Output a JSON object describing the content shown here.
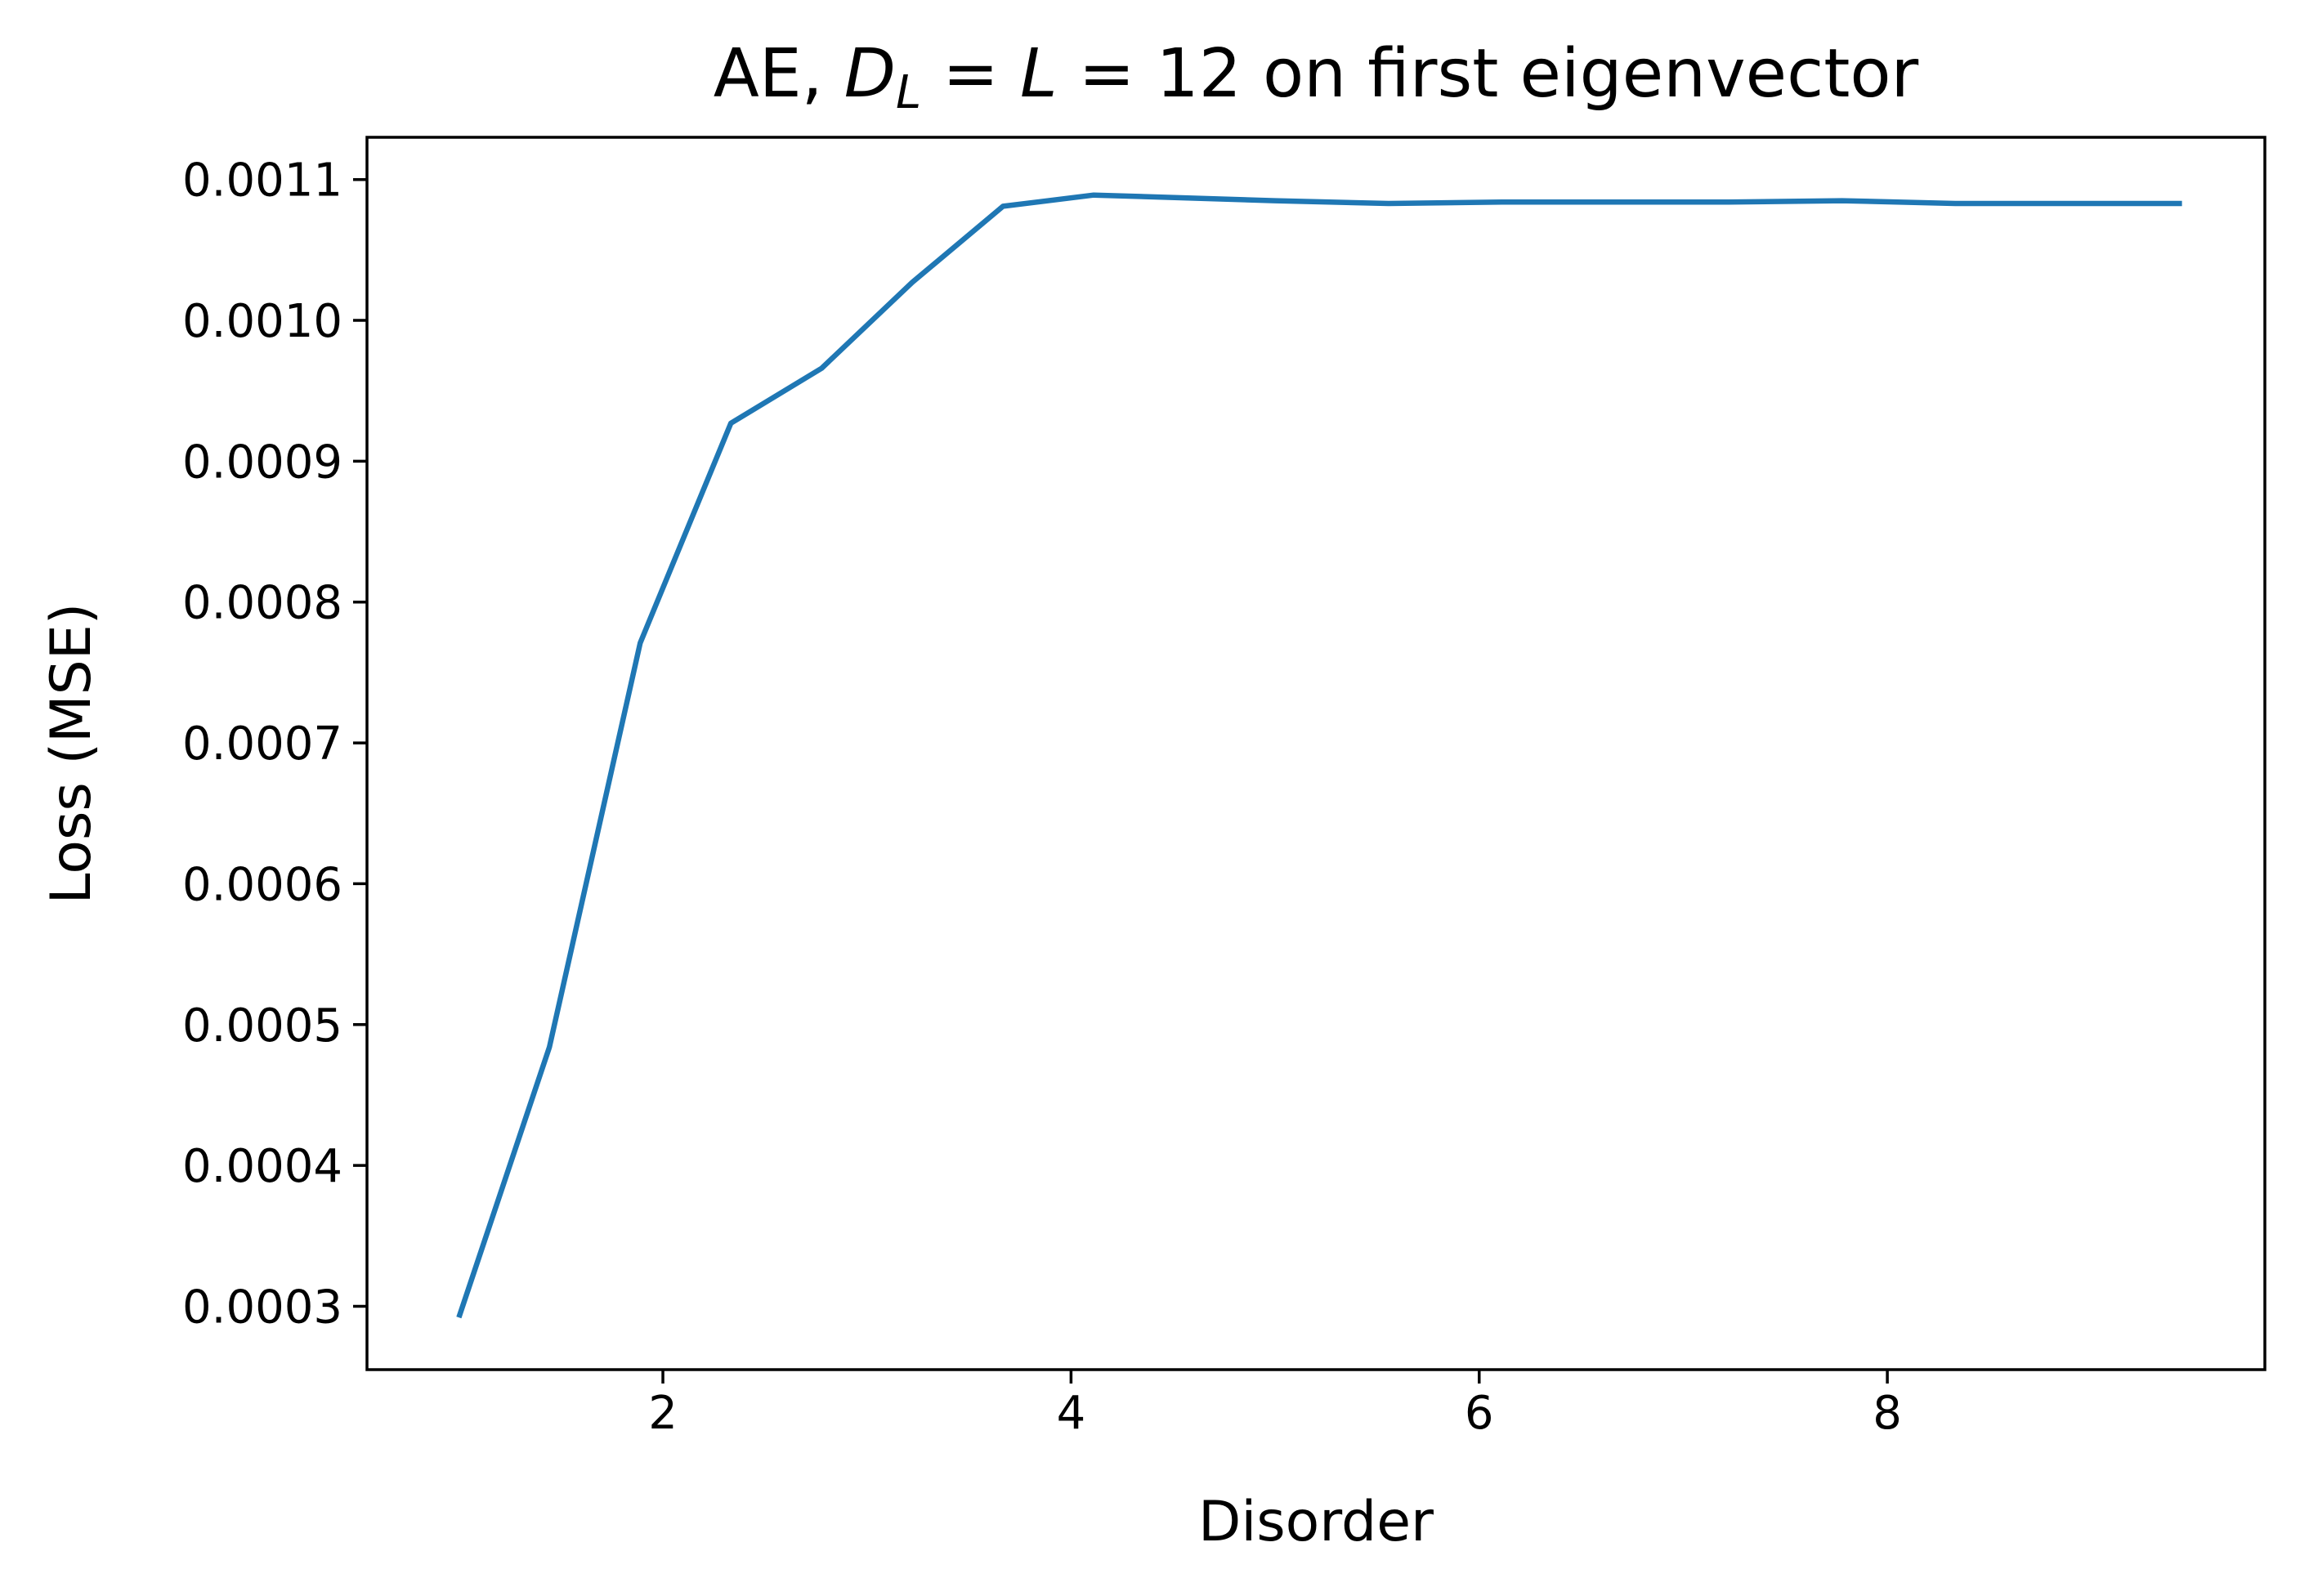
{
  "chart_data": {
    "type": "line",
    "title": {
      "prefix": "AE, ",
      "d_symbol": "D",
      "d_subscript": "L",
      "eq1": " = ",
      "l_symbol": "L",
      "eq2": " = 12",
      "suffix": " on first eigenvector"
    },
    "xlabel": "Disorder",
    "ylabel": "Loss (MSE)",
    "xlim": [
      0.55,
      9.85
    ],
    "ylim": [
      0.000255,
      0.00113
    ],
    "xticks": [
      {
        "value": 2,
        "label": "2"
      },
      {
        "value": 4,
        "label": "4"
      },
      {
        "value": 6,
        "label": "6"
      },
      {
        "value": 8,
        "label": "8"
      }
    ],
    "yticks": [
      {
        "value": 0.0003,
        "label": "0.0003"
      },
      {
        "value": 0.0004,
        "label": "0.0004"
      },
      {
        "value": 0.0005,
        "label": "0.0005"
      },
      {
        "value": 0.0006,
        "label": "0.0006"
      },
      {
        "value": 0.0007,
        "label": "0.0007"
      },
      {
        "value": 0.0008,
        "label": "0.0008"
      },
      {
        "value": 0.0009,
        "label": "0.0009"
      },
      {
        "value": 0.001,
        "label": "0.0010"
      },
      {
        "value": 0.0011,
        "label": "0.0011"
      }
    ],
    "grid": false,
    "series": [
      {
        "color": "#1f77b4",
        "x": [
          1.0,
          1.444,
          1.889,
          2.333,
          2.778,
          3.222,
          3.667,
          4.111,
          4.556,
          5.0,
          5.556,
          6.111,
          6.667,
          7.222,
          7.778,
          8.333,
          8.889,
          9.444
        ],
        "y": [
          0.000292,
          0.000484,
          0.000771,
          0.000927,
          0.000966,
          0.001027,
          0.001081,
          0.001089,
          0.001087,
          0.001085,
          0.001083,
          0.001084,
          0.001084,
          0.001084,
          0.001085,
          0.001083,
          0.001083,
          0.001083
        ]
      }
    ]
  }
}
